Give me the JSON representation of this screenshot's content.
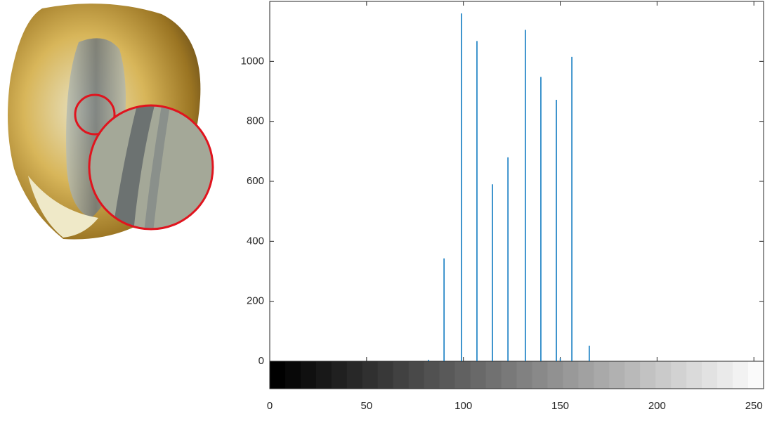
{
  "chart_data": {
    "type": "stem",
    "x": [
      82,
      90,
      99,
      107,
      115,
      123,
      132,
      140,
      148,
      150,
      156,
      165
    ],
    "values": [
      5,
      343,
      1160,
      1068,
      590,
      680,
      1105,
      948,
      872,
      10,
      1015,
      52
    ],
    "color": "#0072bd",
    "xlim": [
      0,
      255
    ],
    "xticks": [
      0,
      50,
      100,
      150,
      200,
      250
    ],
    "ylim": [
      0,
      1200
    ],
    "yticks": [
      0,
      200,
      400,
      600,
      800,
      1000
    ]
  }
}
